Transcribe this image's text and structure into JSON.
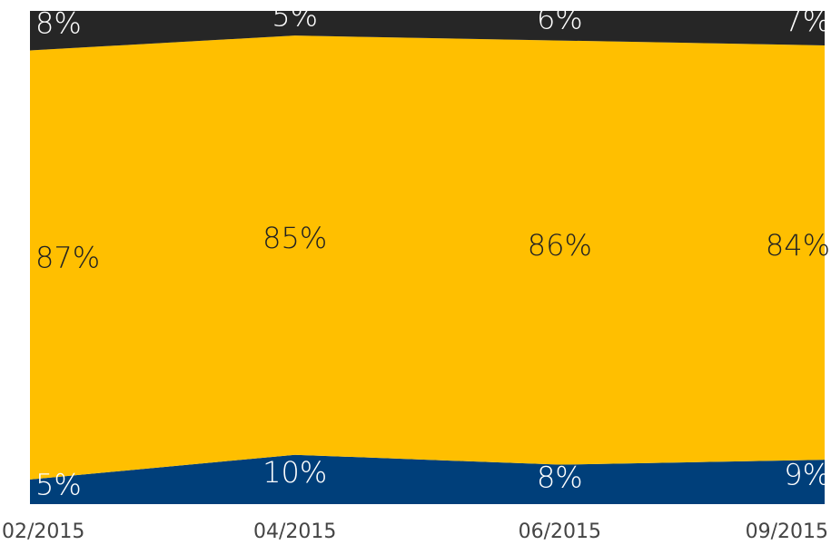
{
  "chart_data": {
    "type": "stacked_area_100",
    "categories": [
      "02/2015",
      "04/2015",
      "06/2015",
      "09/2015"
    ],
    "ylim": [
      0,
      100
    ],
    "series": [
      {
        "color": "#003f7a",
        "values": [
          5,
          10,
          8,
          9
        ],
        "value_labels": [
          "5%",
          "10%",
          "8%",
          "9%"
        ]
      },
      {
        "color": "#ffbf00",
        "values": [
          87,
          85,
          86,
          84
        ],
        "value_labels": [
          "87%",
          "85%",
          "86%",
          "84%"
        ]
      },
      {
        "color": "#262626",
        "values": [
          8,
          5,
          6,
          7
        ],
        "value_labels": [
          "8%",
          "5%",
          "6%",
          "7%"
        ]
      }
    ]
  }
}
